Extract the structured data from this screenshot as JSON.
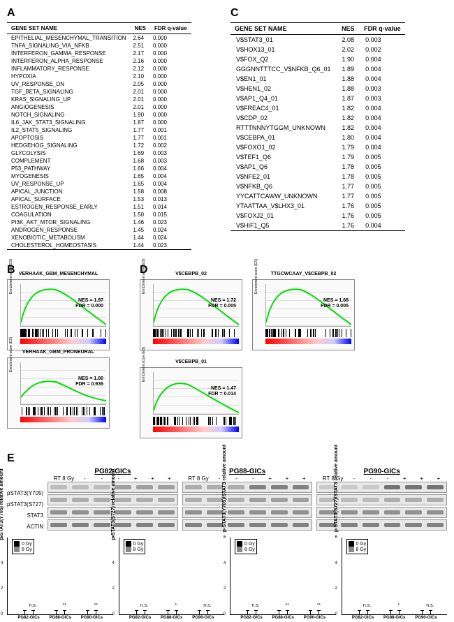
{
  "panelA": {
    "label": "A",
    "headers": {
      "name": "GENE SET NAME",
      "nes": "NES",
      "fdr": "FDR\nq-value"
    },
    "rows": [
      [
        "EPITHELIAL_MESENCHYMAL_TRANSITION",
        "2.64",
        "0.000"
      ],
      [
        "TNFA_SIGNALING_VIA_NFKB",
        "2.51",
        "0.000"
      ],
      [
        "INTERFERON_GAMMA_RESPONSE",
        "2.17",
        "0.000"
      ],
      [
        "INTERFERON_ALPHA_RESPONSE",
        "2.16",
        "0.000"
      ],
      [
        "INFLAMMATORY_RESPONSE",
        "2.12",
        "0.000"
      ],
      [
        "HYPOXIA",
        "2.10",
        "0.000"
      ],
      [
        "UV_RESPONSE_DN",
        "2.05",
        "0.000"
      ],
      [
        "TGF_BETA_SIGNALING",
        "2.01",
        "0.000"
      ],
      [
        "KRAS_SIGNALING_UP",
        "2.01",
        "0.000"
      ],
      [
        "ANGIOGENESIS",
        "2.01",
        "0.000"
      ],
      [
        "NOTCH_SIGNALING",
        "1.90",
        "0.000"
      ],
      [
        "IL6_JAK_STAT3_SIGNALING",
        "1.87",
        "0.000"
      ],
      [
        "IL2_STAT5_SIGNALING",
        "1.77",
        "0.001"
      ],
      [
        "APOPTOSIS",
        "1.77",
        "0.001"
      ],
      [
        "HEDGEHOG_SIGNALING",
        "1.72",
        "0.002"
      ],
      [
        "GLYCOLYSIS",
        "1.69",
        "0.003"
      ],
      [
        "COMPLEMENT",
        "1.68",
        "0.003"
      ],
      [
        "P53_PATHWAY",
        "1.66",
        "0.004"
      ],
      [
        "MYOGENESIS",
        "1.65",
        "0.004"
      ],
      [
        "UV_RESPONSE_UP",
        "1.65",
        "0.004"
      ],
      [
        "APICAL_JUNCTION",
        "1.58",
        "0.008"
      ],
      [
        "APICAL_SURFACE",
        "1.53",
        "0.013"
      ],
      [
        "ESTROGEN_RESPONSE_EARLY",
        "1.51",
        "0.014"
      ],
      [
        "COAGULATION",
        "1.50",
        "0.015"
      ],
      [
        "PI3K_AKT_MTOR_SIGNALING",
        "1.46",
        "0.023"
      ],
      [
        "ANDROGEN_RESPONSE",
        "1.45",
        "0.024"
      ],
      [
        "XENOBIOTIC_METABOLISM",
        "1.44",
        "0.024"
      ],
      [
        "CHOLESTEROL_HOMEOSTASIS",
        "1.44",
        "0.023"
      ]
    ]
  },
  "panelC": {
    "label": "C",
    "headers": {
      "name": "GENE SET NAME",
      "nes": "NES",
      "fdr": "FDR\nq-value"
    },
    "rows": [
      [
        "V$STAT3_01",
        "2.08",
        "0.003"
      ],
      [
        "V$HOX13_01",
        "2.02",
        "0.002"
      ],
      [
        "V$FOX_Q2",
        "1.90",
        "0.004"
      ],
      [
        "GGGNNTTTCC_V$NFKB_Q6_01",
        "1.89",
        "0.004"
      ],
      [
        "V$EN1_01",
        "1.88",
        "0.004"
      ],
      [
        "V$HEN1_02",
        "1.88",
        "0.003"
      ],
      [
        "V$AP1_Q4_01",
        "1.87",
        "0.003"
      ],
      [
        "V$FREAC4_01",
        "1.82",
        "0.004"
      ],
      [
        "V$CDP_02",
        "1.82",
        "0.004"
      ],
      [
        "RTTTNNNYTGGM_UNKNOWN",
        "1.82",
        "0.004"
      ],
      [
        "V$CEBPA_01",
        "1.80",
        "0.004"
      ],
      [
        "V$FOXO1_02",
        "1.79",
        "0.004"
      ],
      [
        "V$TEF1_Q6",
        "1.79",
        "0.005"
      ],
      [
        "V$AP1_Q6",
        "1.78",
        "0.005"
      ],
      [
        "V$NFE2_01",
        "1.78",
        "0.005"
      ],
      [
        "V$NFKB_Q6",
        "1.77",
        "0.005"
      ],
      [
        "YYCATTCAWW_UNKNOWN",
        "1.77",
        "0.005"
      ],
      [
        "YTAATTAA_V$LHX3_01",
        "1.76",
        "0.005"
      ],
      [
        "V$FOXJ2_01",
        "1.76",
        "0.005"
      ],
      [
        "V$HIF1_Q5",
        "1.76",
        "0.004"
      ]
    ]
  },
  "panelB": {
    "label": "B",
    "plots": [
      {
        "title": "VERHAAK_GBM_MESENCHYMAL",
        "nes": "NES = 1.97",
        "fdr": "FDR = 0.000",
        "shape": "high",
        "barcode_density": "left"
      },
      {
        "title": "VERHAAK_GBM_PRONEURAL",
        "nes": "NES = 1.00",
        "fdr": "FDR = 0.936",
        "shape": "flat",
        "barcode_density": "spread"
      }
    ]
  },
  "panelD": {
    "label": "D",
    "plots": [
      {
        "title": "V$CEBPB_02",
        "nes": "NES = 1.72",
        "fdr": "FDR = 0.005",
        "shape": "high",
        "barcode_density": "left"
      },
      {
        "title": "TTGCWCAAY_V$CEBPB_02",
        "nes": "NES = 1.68",
        "fdr": "FDR = 0.005",
        "shape": "high",
        "barcode_density": "left"
      },
      {
        "title": "V$CEBPB_01",
        "nes": "NES = 1.47",
        "fdr": "FDR = 0.014",
        "shape": "med",
        "barcode_density": "left"
      }
    ]
  },
  "panelE": {
    "label": "E",
    "groups": [
      "PG82-GICs",
      "PG88-GICs",
      "PG90-GICs"
    ],
    "rt_label": "RT 8 Gy",
    "rt_signs": [
      "-",
      "-",
      "-",
      "+",
      "+",
      "+"
    ],
    "proteins": [
      "pSTAT3(Y705)",
      "pSTAT3(S727)",
      "STAT3",
      "ACTIN"
    ],
    "blot_intensity": {
      "PG82-GICs": {
        "pSTAT3(Y705)": [
          0.3,
          0.3,
          0.3,
          0.5,
          0.5,
          0.5
        ],
        "pSTAT3(S727)": [
          0.4,
          0.4,
          0.4,
          0.4,
          0.4,
          0.4
        ],
        "STAT3": [
          0.6,
          0.6,
          0.6,
          0.6,
          0.6,
          0.6
        ],
        "ACTIN": [
          0.7,
          0.7,
          0.7,
          0.7,
          0.7,
          0.7
        ]
      },
      "PG88-GICs": {
        "pSTAT3(Y705)": [
          0.4,
          0.4,
          0.4,
          0.7,
          0.7,
          0.7
        ],
        "pSTAT3(S727)": [
          0.4,
          0.4,
          0.4,
          0.5,
          0.5,
          0.5
        ],
        "STAT3": [
          0.6,
          0.6,
          0.6,
          0.6,
          0.6,
          0.6
        ],
        "ACTIN": [
          0.7,
          0.7,
          0.7,
          0.7,
          0.7,
          0.7
        ]
      },
      "PG90-GICs": {
        "pSTAT3(Y705)": [
          0.2,
          0.2,
          0.2,
          0.8,
          0.8,
          0.8
        ],
        "pSTAT3(S727)": [
          0.3,
          0.3,
          0.3,
          0.4,
          0.4,
          0.4
        ],
        "STAT3": [
          0.6,
          0.6,
          0.6,
          0.6,
          0.6,
          0.6
        ],
        "ACTIN": [
          0.7,
          0.7,
          0.7,
          0.7,
          0.7,
          0.7
        ]
      }
    },
    "charts": [
      {
        "ylabel": "p-STAT3(Y705)\nrelative amount",
        "ymax": 6,
        "groups": [
          "PG82-GICs",
          "PG88-GICs",
          "PG90-GICs"
        ],
        "bars": [
          {
            "b": 1.0,
            "g": 1.3,
            "sig": "n.s."
          },
          {
            "b": 1.0,
            "g": 1.9,
            "sig": "**"
          },
          {
            "b": 1.0,
            "g": 3.8,
            "sig": "**"
          }
        ],
        "legend": [
          "0 Gy",
          "8 Gy"
        ]
      },
      {
        "ylabel": "p-STAT3(S727)\nrelative amount",
        "ymax": 6,
        "groups": [
          "PG82-GICs",
          "PG88-GICs",
          "PG90-GICs"
        ],
        "bars": [
          {
            "b": 1.0,
            "g": 1.1,
            "sig": "n.s."
          },
          {
            "b": 1.0,
            "g": 1.5,
            "sig": "*"
          },
          {
            "b": 1.0,
            "g": 1.1,
            "sig": "n.s."
          }
        ],
        "legend": [
          "0 Gy",
          "8 Gy"
        ]
      },
      {
        "ylabel": "p-STAT3(Y705)/STAT3\nrelative amount",
        "ymax": 6,
        "groups": [
          "PG82-GICs",
          "PG88-GICs",
          "PG90-GICs"
        ],
        "bars": [
          {
            "b": 1.0,
            "g": 1.2,
            "sig": "n.s."
          },
          {
            "b": 1.0,
            "g": 1.8,
            "sig": "**"
          },
          {
            "b": 1.0,
            "g": 2.2,
            "sig": "**"
          }
        ],
        "legend": [
          "0 Gy",
          "8 Gy"
        ]
      },
      {
        "ylabel": "p-STAT3(S727)/STAT3\nrelative amount",
        "ymax": 6,
        "groups": [
          "PG82-GICs",
          "PG88-GICs",
          "PG90-GICs"
        ],
        "bars": [
          {
            "b": 1.0,
            "g": 1.1,
            "sig": "n.s."
          },
          {
            "b": 1.0,
            "g": 1.4,
            "sig": "*"
          },
          {
            "b": 1.0,
            "g": 1.0,
            "sig": "n.s."
          }
        ],
        "legend": [
          "0 Gy",
          "8 Gy"
        ]
      }
    ]
  },
  "colors": {
    "curve": "#00dd00",
    "bar_black": "#000000",
    "bar_gray": "#888888"
  }
}
